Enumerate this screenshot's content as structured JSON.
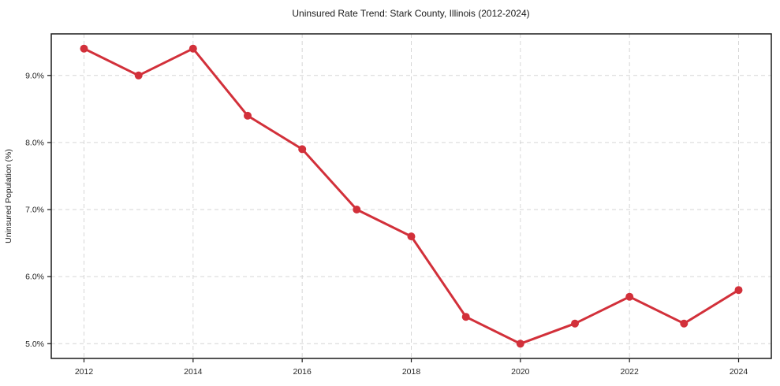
{
  "title": "Uninsured Rate Trend: Stark County, Illinois (2012-2024)",
  "colors": {
    "line": "#d2303a",
    "marker": "#d2303a",
    "grid": "#cfcfcf",
    "axis_frame": "#1a1a1a",
    "text": "#262626",
    "background": "#ffffff"
  },
  "chart_data": {
    "type": "line",
    "title": "Uninsured Rate Trend: Stark County, Illinois (2012-2024)",
    "xlabel": "",
    "ylabel": "Uninsured Population (%)",
    "x": [
      2012,
      2013,
      2014,
      2015,
      2016,
      2017,
      2018,
      2019,
      2020,
      2021,
      2022,
      2023,
      2024
    ],
    "values": [
      9.4,
      9.0,
      9.4,
      8.4,
      7.9,
      7.0,
      6.6,
      5.4,
      5.0,
      5.3,
      5.7,
      5.3,
      5.8
    ],
    "series_name": "Uninsured rate (%)",
    "xticks": [
      2012,
      2014,
      2016,
      2018,
      2020,
      2022,
      2024
    ],
    "xtick_labels": [
      "2012",
      "2014",
      "2016",
      "2018",
      "2020",
      "2022",
      "2024"
    ],
    "yticks": [
      5.0,
      6.0,
      7.0,
      8.0,
      9.0
    ],
    "ytick_labels": [
      "5.0%",
      "6.0%",
      "7.0%",
      "8.0%",
      "9.0%"
    ],
    "xlim": [
      2011.4,
      2024.6
    ],
    "ylim": [
      4.78,
      9.62
    ],
    "grid": true,
    "grid_style": "dashed",
    "legend": false,
    "marker": "circle",
    "line_width": 3,
    "marker_radius": 5
  }
}
